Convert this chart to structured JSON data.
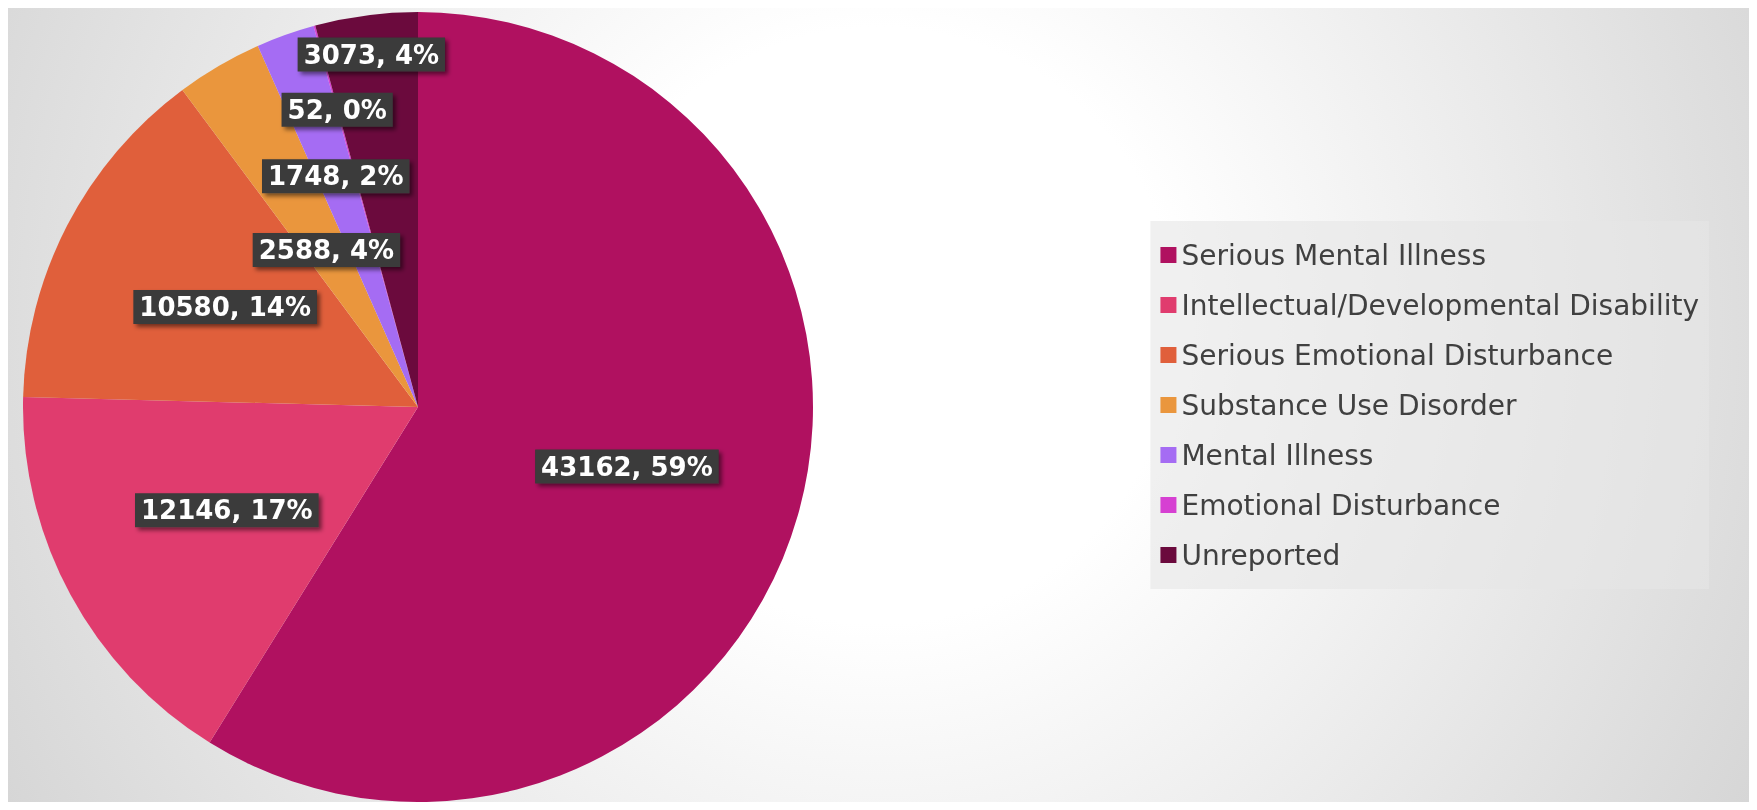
{
  "chart_data": {
    "type": "pie",
    "categories": [
      "Serious Mental Illness",
      "Intellectual/Developmental Disability",
      "Serious Emotional Disturbance",
      "Substance Use Disorder",
      "Mental Illness",
      "Emotional Disturbance",
      "Unreported"
    ],
    "values": [
      43162,
      12146,
      10580,
      2588,
      1748,
      52,
      3073
    ],
    "value_labels": [
      "43162, 59%",
      "12146, 17%",
      "10580, 14%",
      "2588, 4%",
      "1748, 2%",
      "52, 0%",
      "3073, 4%"
    ],
    "colors": [
      "#b01160",
      "#e03c6e",
      "#e05f3b",
      "#ea963d",
      "#a56cf3",
      "#d640d2",
      "#6b0a3d"
    ],
    "legend": "right"
  }
}
